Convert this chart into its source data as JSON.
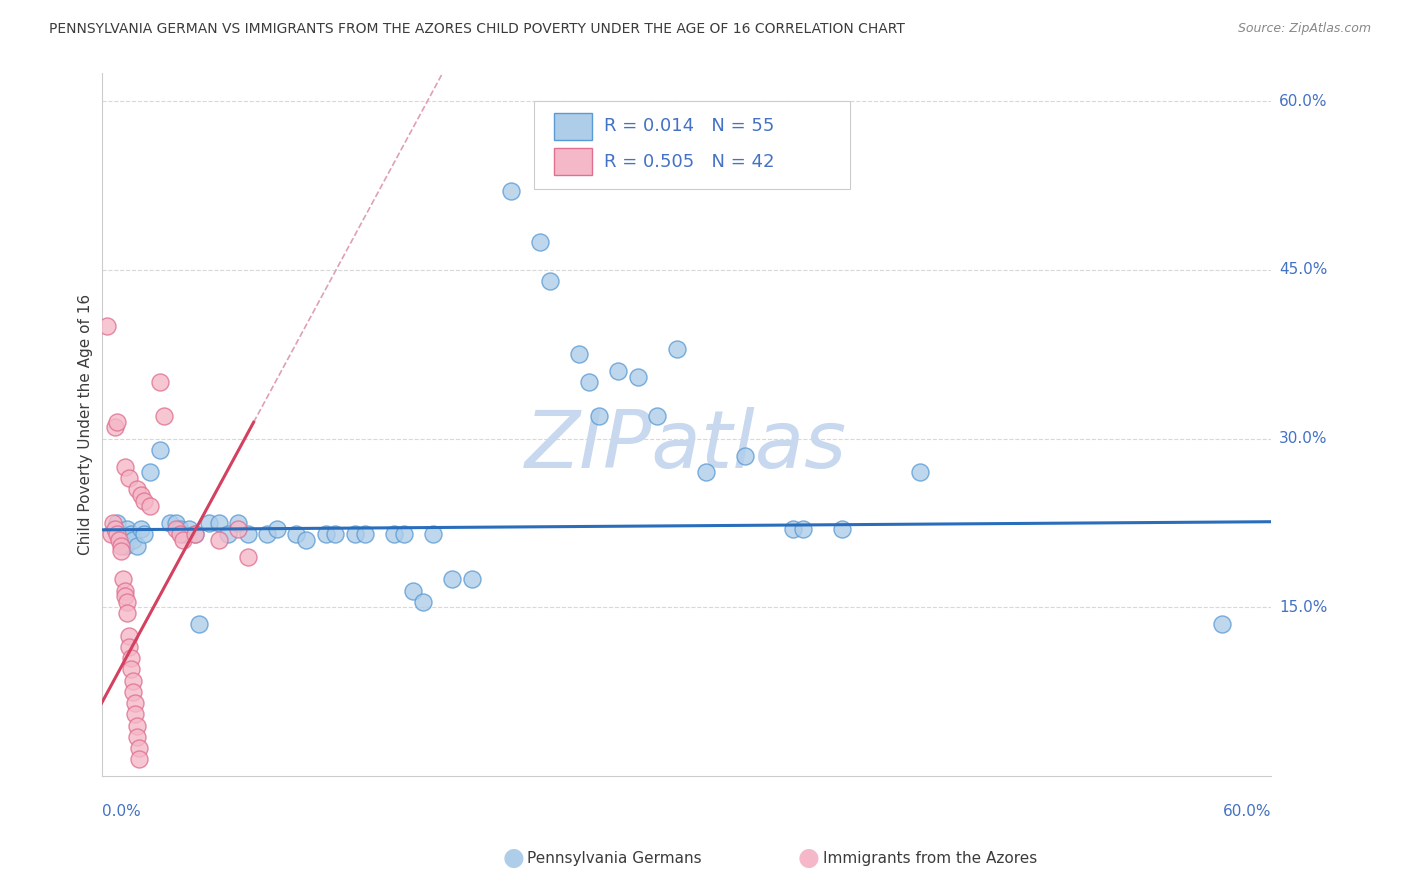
{
  "title": "PENNSYLVANIA GERMAN VS IMMIGRANTS FROM THE AZORES CHILD POVERTY UNDER THE AGE OF 16 CORRELATION CHART",
  "source": "Source: ZipAtlas.com",
  "ylabel": "Child Poverty Under the Age of 16",
  "xmin": 0.0,
  "xmax": 0.6,
  "ymin": 0.0,
  "ymax": 0.625,
  "yticks": [
    0.0,
    0.15,
    0.3,
    0.45,
    0.6
  ],
  "ytick_labels": [
    "",
    "15.0%",
    "30.0%",
    "45.0%",
    "60.0%"
  ],
  "legend_entries": [
    {
      "label": "Pennsylvania Germans",
      "color": "#aecde8",
      "edge": "#5b9bd5",
      "R": "0.014",
      "N": "55"
    },
    {
      "label": "Immigrants from the Azores",
      "color": "#f4b8c8",
      "edge": "#e07090",
      "R": "0.505",
      "N": "42"
    }
  ],
  "blue_scatter": [
    [
      0.008,
      0.225
    ],
    [
      0.01,
      0.215
    ],
    [
      0.012,
      0.205
    ],
    [
      0.013,
      0.22
    ],
    [
      0.015,
      0.215
    ],
    [
      0.016,
      0.21
    ],
    [
      0.018,
      0.205
    ],
    [
      0.02,
      0.22
    ],
    [
      0.022,
      0.215
    ],
    [
      0.025,
      0.27
    ],
    [
      0.03,
      0.29
    ],
    [
      0.035,
      0.225
    ],
    [
      0.038,
      0.225
    ],
    [
      0.04,
      0.22
    ],
    [
      0.042,
      0.215
    ],
    [
      0.045,
      0.22
    ],
    [
      0.048,
      0.215
    ],
    [
      0.05,
      0.135
    ],
    [
      0.055,
      0.225
    ],
    [
      0.06,
      0.225
    ],
    [
      0.065,
      0.215
    ],
    [
      0.07,
      0.225
    ],
    [
      0.075,
      0.215
    ],
    [
      0.085,
      0.215
    ],
    [
      0.09,
      0.22
    ],
    [
      0.1,
      0.215
    ],
    [
      0.105,
      0.21
    ],
    [
      0.115,
      0.215
    ],
    [
      0.12,
      0.215
    ],
    [
      0.13,
      0.215
    ],
    [
      0.135,
      0.215
    ],
    [
      0.15,
      0.215
    ],
    [
      0.155,
      0.215
    ],
    [
      0.16,
      0.165
    ],
    [
      0.165,
      0.155
    ],
    [
      0.17,
      0.215
    ],
    [
      0.18,
      0.175
    ],
    [
      0.19,
      0.175
    ],
    [
      0.21,
      0.52
    ],
    [
      0.225,
      0.475
    ],
    [
      0.23,
      0.44
    ],
    [
      0.245,
      0.375
    ],
    [
      0.25,
      0.35
    ],
    [
      0.255,
      0.32
    ],
    [
      0.265,
      0.36
    ],
    [
      0.275,
      0.355
    ],
    [
      0.285,
      0.32
    ],
    [
      0.295,
      0.38
    ],
    [
      0.31,
      0.27
    ],
    [
      0.33,
      0.285
    ],
    [
      0.355,
      0.22
    ],
    [
      0.36,
      0.22
    ],
    [
      0.38,
      0.22
    ],
    [
      0.42,
      0.27
    ],
    [
      0.575,
      0.135
    ]
  ],
  "pink_scatter": [
    [
      0.003,
      0.4
    ],
    [
      0.005,
      0.215
    ],
    [
      0.006,
      0.225
    ],
    [
      0.007,
      0.22
    ],
    [
      0.008,
      0.215
    ],
    [
      0.009,
      0.21
    ],
    [
      0.01,
      0.205
    ],
    [
      0.01,
      0.2
    ],
    [
      0.011,
      0.175
    ],
    [
      0.012,
      0.165
    ],
    [
      0.012,
      0.16
    ],
    [
      0.013,
      0.155
    ],
    [
      0.013,
      0.145
    ],
    [
      0.014,
      0.125
    ],
    [
      0.014,
      0.115
    ],
    [
      0.015,
      0.105
    ],
    [
      0.015,
      0.095
    ],
    [
      0.016,
      0.085
    ],
    [
      0.016,
      0.075
    ],
    [
      0.017,
      0.065
    ],
    [
      0.017,
      0.055
    ],
    [
      0.018,
      0.045
    ],
    [
      0.018,
      0.035
    ],
    [
      0.019,
      0.025
    ],
    [
      0.019,
      0.015
    ],
    [
      0.007,
      0.31
    ],
    [
      0.008,
      0.315
    ],
    [
      0.012,
      0.275
    ],
    [
      0.014,
      0.265
    ],
    [
      0.018,
      0.255
    ],
    [
      0.02,
      0.25
    ],
    [
      0.022,
      0.245
    ],
    [
      0.025,
      0.24
    ],
    [
      0.03,
      0.35
    ],
    [
      0.032,
      0.32
    ],
    [
      0.038,
      0.22
    ],
    [
      0.04,
      0.215
    ],
    [
      0.042,
      0.21
    ],
    [
      0.048,
      0.215
    ],
    [
      0.06,
      0.21
    ],
    [
      0.07,
      0.22
    ],
    [
      0.075,
      0.195
    ]
  ],
  "blue_line_color": "#2a6ebb",
  "pink_line_color": "#d44060",
  "dashed_line_color": "#e0a0b0",
  "background_color": "#ffffff",
  "grid_color": "#d8d8d8",
  "title_color": "#3c3c3c",
  "axis_label_color": "#3c3c3c",
  "right_tick_color": "#4472c4",
  "watermark_text": "ZIPatlas",
  "watermark_color": "#c8d8ee"
}
